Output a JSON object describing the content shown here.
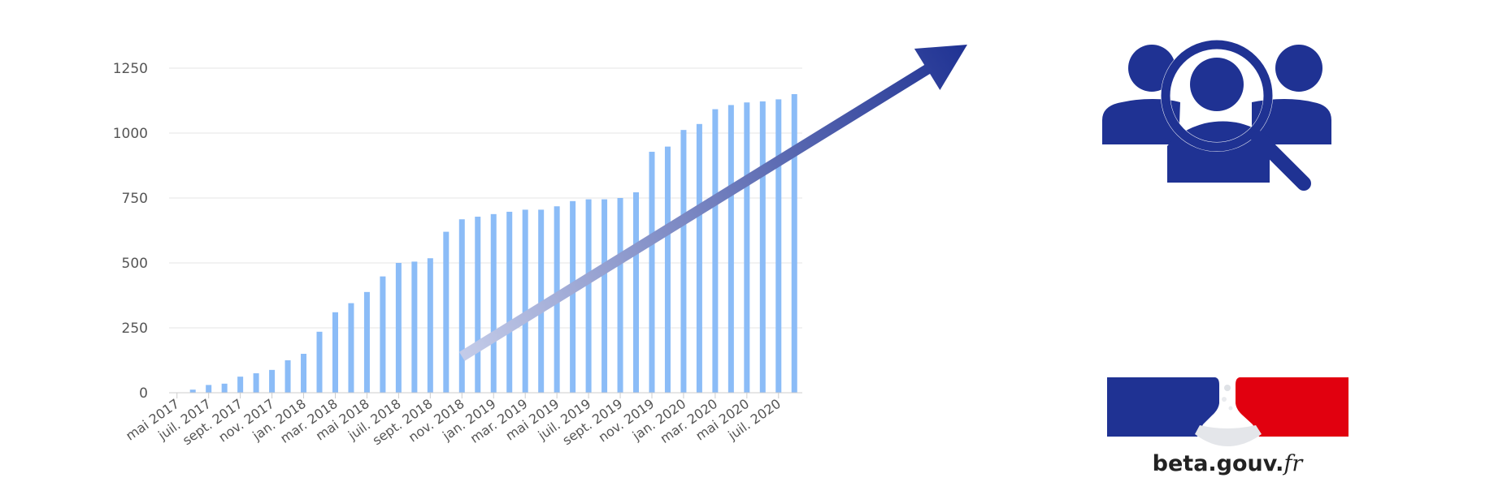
{
  "chart_data": {
    "type": "bar",
    "title": "",
    "xlabel": "",
    "ylabel": "",
    "ylim": [
      0,
      1250
    ],
    "yticks": [
      0,
      250,
      500,
      750,
      1000,
      1250
    ],
    "grid": true,
    "legend": "none",
    "bar_color": "#8bbcf7",
    "trend_arrow": {
      "from": {
        "x": "nov. 2018",
        "y": 140
      },
      "to": {
        "x": "juil. 2020",
        "y": 1300
      },
      "color_start": "#c3cbe8",
      "color_end": "#1f3293"
    },
    "categories": [
      "mai 2017",
      "juin 2017",
      "juil. 2017",
      "août 2017",
      "sept. 2017",
      "oct. 2017",
      "nov. 2017",
      "déc. 2017",
      "jan. 2018",
      "févr. 2018",
      "mar. 2018",
      "avr. 2018",
      "mai 2018",
      "juin 2018",
      "juil. 2018",
      "août 2018",
      "sept. 2018",
      "oct. 2018",
      "nov. 2018",
      "déc. 2018",
      "jan. 2019",
      "févr. 2019",
      "mar. 2019",
      "avr. 2019",
      "mai 2019",
      "juin 2019",
      "juil. 2019",
      "août 2019",
      "sept. 2019",
      "oct. 2019",
      "nov. 2019",
      "déc. 2019",
      "jan. 2020",
      "févr. 2020",
      "mar. 2020",
      "avr. 2020",
      "mai 2020",
      "juin 2020",
      "juil. 2020",
      "août 2020"
    ],
    "tick_labels": [
      "mai 2017",
      "juil. 2017",
      "sept. 2017",
      "nov. 2017",
      "jan. 2018",
      "mar. 2018",
      "mai 2018",
      "juil. 2018",
      "sept. 2018",
      "nov. 2018",
      "jan. 2019",
      "mar. 2019",
      "mai 2019",
      "juil. 2019",
      "sept. 2019",
      "nov. 2019",
      "jan. 2020",
      "mar. 2020",
      "mai 2020",
      "juil. 2020"
    ],
    "values": [
      0,
      12,
      30,
      35,
      62,
      75,
      88,
      125,
      150,
      235,
      310,
      345,
      388,
      448,
      500,
      505,
      518,
      620,
      668,
      678,
      688,
      697,
      705,
      705,
      718,
      738,
      745,
      745,
      750,
      772,
      928,
      948,
      1012,
      1035,
      1092,
      1108,
      1118,
      1122,
      1130,
      1150
    ]
  },
  "icons": {
    "search_users": "search-users-icon",
    "search_users_color": "#1f3293"
  },
  "brand": {
    "logo_text_main": "beta.gouv.",
    "logo_text_suffix": "fr",
    "flag_blue": "#1f3293",
    "flag_red": "#e1000f"
  }
}
